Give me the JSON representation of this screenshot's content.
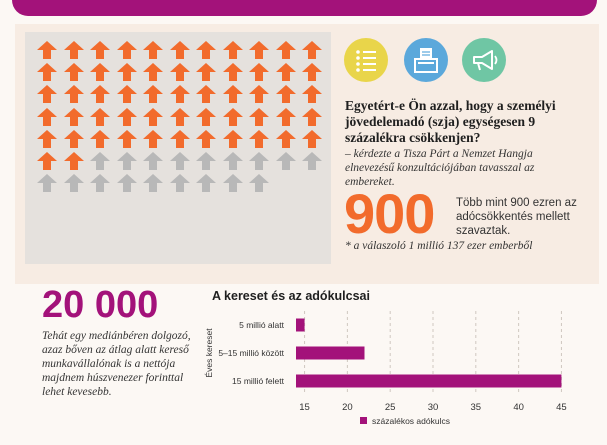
{
  "arrows": {
    "total": 75,
    "orange": 57,
    "orange_color": "#f26b2c",
    "gray_color": "#b8b8b8",
    "columns": 11
  },
  "icons": [
    {
      "name": "checklist-icon",
      "color": "#e9d54a"
    },
    {
      "name": "ballot-box-icon",
      "color": "#5ba8db"
    },
    {
      "name": "megaphone-icon",
      "color": "#6fc6a4"
    }
  ],
  "question": {
    "text": "Egyetért-e Ön azzal, hogy a személyi jövedelemadó (szja) egységesen 9 százalékra csökkenjen?",
    "attribution": "– kérdezte a Tisza Párt a Nemzet Hangja elnevezésű konzultációjában tavasszal az embereket."
  },
  "stat900": {
    "number": "900",
    "description": "Több mint 900 ezren az adócsökkentés mellett szavaztak.",
    "footnote": "* a válaszoló 1 millió 137 ezer emberből"
  },
  "stat20000": {
    "number": "20 000",
    "description": "Tehát egy mediánbéren dolgozó, azaz bőven az átlag alatt kereső munkavállalónak is a nettója majdnem húszvenezer forinttal lehet kevesebb."
  },
  "chart_data": {
    "type": "bar",
    "orientation": "horizontal",
    "title": "A kereset és az adókulcsai",
    "ylabel": "Éves kereset",
    "categories": [
      "5 millió alatt",
      "5–15 millió között",
      "15 millió felett"
    ],
    "series": [
      {
        "name": "százalékos adókulcs",
        "values": [
          15,
          22,
          45
        ],
        "color": "#a3127a"
      }
    ],
    "xlim": [
      14,
      46
    ],
    "xticks": [
      15,
      20,
      25,
      30,
      35,
      40,
      45
    ],
    "grid": true,
    "legend": "bottom"
  }
}
